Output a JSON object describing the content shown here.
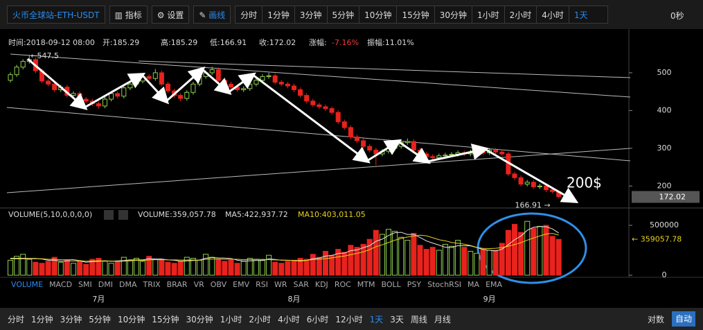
{
  "toolbar": {
    "symbol": "火币全球站-ETH-USDT",
    "indicator": "指标",
    "settings": "设置",
    "draw": "画线",
    "intervals": [
      "分时",
      "1分钟",
      "3分钟",
      "5分钟",
      "10分钟",
      "15分钟",
      "30分钟",
      "1小时",
      "2小时",
      "4小时",
      "1天"
    ],
    "countdown": "0秒"
  },
  "info": {
    "time": "时间:2018-09-12 08:00",
    "open": "开:185.29",
    "high": "高:185.29",
    "low": "低:166.91",
    "close": "收:172.02",
    "change_label": "涨幅:",
    "change": "-7.16%",
    "amplitude": "振幅:11.01%"
  },
  "chart_data": [
    {
      "type": "candlestick",
      "categories": [
        null,
        null,
        null,
        null,
        null,
        null,
        null,
        null,
        null,
        null,
        null,
        null,
        null,
        null,
        "7月",
        null,
        null,
        null,
        null,
        null,
        null,
        null,
        null,
        null,
        null,
        null,
        null,
        null,
        null,
        null,
        null,
        null,
        null,
        null,
        null,
        null,
        null,
        null,
        null,
        null,
        null,
        null,
        null,
        null,
        null,
        "8月",
        null,
        null,
        null,
        null,
        null,
        null,
        null,
        null,
        null,
        null,
        null,
        null,
        null,
        null,
        null,
        null,
        null,
        null,
        null,
        null,
        null,
        null,
        null,
        null,
        null,
        null,
        null,
        null,
        null,
        null,
        "9月",
        null,
        null,
        null,
        null,
        null,
        null,
        null,
        null,
        null,
        null,
        null
      ],
      "candles": [
        [
          480,
          501,
          474,
          495
        ],
        [
          495,
          521,
          489,
          515
        ],
        [
          515,
          536,
          509,
          530
        ],
        [
          530,
          547.5,
          524,
          535
        ],
        [
          535,
          541,
          499,
          505
        ],
        [
          505,
          511,
          472,
          478
        ],
        [
          478,
          484,
          464,
          470
        ],
        [
          470,
          476,
          449,
          455
        ],
        [
          455,
          468,
          449,
          462
        ],
        [
          462,
          468,
          434,
          440
        ],
        [
          440,
          451,
          434,
          445
        ],
        [
          445,
          451,
          424,
          430
        ],
        [
          430,
          436,
          419,
          425
        ],
        [
          425,
          431,
          412,
          418
        ],
        [
          418,
          424,
          405,
          412
        ],
        [
          412,
          436,
          406,
          430
        ],
        [
          430,
          451,
          424,
          445
        ],
        [
          445,
          451,
          432,
          438
        ],
        [
          438,
          466,
          432,
          460
        ],
        [
          460,
          476,
          454,
          470
        ],
        [
          470,
          484,
          464,
          478
        ],
        [
          478,
          496,
          472,
          490
        ],
        [
          490,
          496,
          479,
          485
        ],
        [
          485,
          510,
          479,
          500
        ],
        [
          500,
          506,
          464,
          470
        ],
        [
          470,
          476,
          446,
          452
        ],
        [
          452,
          458,
          434,
          440
        ],
        [
          440,
          446,
          424,
          432
        ],
        [
          432,
          454,
          426,
          448
        ],
        [
          448,
          476,
          442,
          470
        ],
        [
          470,
          496,
          464,
          490
        ],
        [
          490,
          506,
          484,
          500
        ],
        [
          500,
          516,
          494,
          508
        ],
        [
          508,
          514,
          474,
          480
        ],
        [
          480,
          486,
          464,
          470
        ],
        [
          470,
          476,
          456,
          462
        ],
        [
          462,
          468,
          449,
          455
        ],
        [
          455,
          464,
          449,
          458
        ],
        [
          458,
          476,
          452,
          470
        ],
        [
          470,
          486,
          464,
          480
        ],
        [
          480,
          496,
          474,
          490
        ],
        [
          490,
          500,
          484,
          492
        ],
        [
          492,
          498,
          469,
          475
        ],
        [
          475,
          481,
          464,
          470
        ],
        [
          470,
          476,
          459,
          465
        ],
        [
          465,
          471,
          449,
          455
        ],
        [
          455,
          461,
          434,
          440
        ],
        [
          440,
          446,
          419,
          425
        ],
        [
          425,
          431,
          409,
          415
        ],
        [
          415,
          421,
          404,
          410
        ],
        [
          410,
          416,
          399,
          405
        ],
        [
          405,
          411,
          389,
          395
        ],
        [
          395,
          401,
          364,
          370
        ],
        [
          370,
          376,
          349,
          355
        ],
        [
          355,
          361,
          324,
          330
        ],
        [
          330,
          336,
          314,
          320
        ],
        [
          320,
          326,
          299,
          305
        ],
        [
          305,
          311,
          289,
          295
        ],
        [
          295,
          301,
          255,
          285
        ],
        [
          285,
          298,
          279,
          292
        ],
        [
          292,
          306,
          286,
          300
        ],
        [
          300,
          311,
          294,
          305
        ],
        [
          305,
          321,
          299,
          315
        ],
        [
          315,
          326,
          309,
          318
        ],
        [
          318,
          324,
          289,
          295
        ],
        [
          295,
          301,
          279,
          285
        ],
        [
          285,
          291,
          272,
          278
        ],
        [
          278,
          284,
          269,
          275
        ],
        [
          275,
          286,
          269,
          280
        ],
        [
          280,
          288,
          274,
          282
        ],
        [
          282,
          290,
          276,
          284
        ],
        [
          284,
          294,
          278,
          288
        ],
        [
          288,
          294,
          279,
          285
        ],
        [
          285,
          296,
          279,
          290
        ],
        [
          290,
          298,
          284,
          292
        ],
        [
          292,
          298,
          282,
          288
        ],
        [
          288,
          301,
          282,
          295
        ],
        [
          295,
          301,
          284,
          290
        ],
        [
          290,
          296,
          279,
          285
        ],
        [
          285,
          291,
          226,
          232
        ],
        [
          232,
          238,
          216,
          222
        ],
        [
          222,
          228,
          199,
          205
        ],
        [
          205,
          216,
          199,
          210
        ],
        [
          210,
          216,
          192,
          198
        ],
        [
          198,
          206,
          192,
          200
        ],
        [
          200,
          206,
          184,
          190
        ],
        [
          190,
          196,
          180,
          185.29
        ],
        [
          185.29,
          185.29,
          166.91,
          172.02
        ]
      ],
      "up_color": "#8fd14f",
      "down_color": "#e8221d",
      "ylim": [
        151,
        555
      ],
      "yticks": [
        200,
        300,
        400,
        500
      ],
      "high_label": {
        "value": 547.5,
        "label": "←547.5"
      },
      "low_label": {
        "value": 166.91,
        "label": "166.91 →"
      },
      "price_tag": 172.02,
      "annotation": "200$"
    },
    {
      "type": "bar",
      "header": "VOLUME(5,10,0,0,0,0)",
      "volume_text": "VOLUME:359,057.78",
      "ma5_text": "MA5:422,937.72",
      "ma10_text": "MA10:403,011.05",
      "values": [
        150000,
        190000,
        210000,
        160000,
        130000,
        120000,
        140000,
        180000,
        130000,
        150000,
        120000,
        140000,
        110000,
        160000,
        170000,
        140000,
        120000,
        130000,
        180000,
        150000,
        170000,
        140000,
        190000,
        160000,
        150000,
        130000,
        120000,
        140000,
        180000,
        170000,
        150000,
        210000,
        180000,
        160000,
        140000,
        150000,
        120000,
        140000,
        170000,
        160000,
        150000,
        200000,
        130000,
        120000,
        140000,
        150000,
        170000,
        160000,
        210000,
        180000,
        240000,
        200000,
        260000,
        230000,
        300000,
        280000,
        310000,
        360000,
        450000,
        410000,
        460000,
        440000,
        380000,
        350000,
        420000,
        300000,
        260000,
        280000,
        250000,
        310000,
        290000,
        350000,
        280000,
        240000,
        220000,
        260000,
        250000,
        250000,
        320000,
        450000,
        510000,
        430000,
        540000,
        470000,
        490000,
        500000,
        390000,
        359057.78
      ],
      "ma5": [
        170000,
        170000,
        170000,
        168000,
        168000,
        162000,
        150000,
        150000,
        140000,
        144000,
        144000,
        144000,
        130000,
        136000,
        140000,
        144000,
        140000,
        144000,
        148000,
        154000,
        154000,
        154000,
        166000,
        162000,
        162000,
        154000,
        150000,
        140000,
        144000,
        148000,
        152000,
        170000,
        178000,
        174000,
        172000,
        168000,
        150000,
        142000,
        144000,
        148000,
        148000,
        164000,
        158000,
        150000,
        150000,
        148000,
        142000,
        148000,
        166000,
        172000,
        192000,
        198000,
        218000,
        222000,
        246000,
        254000,
        276000,
        296000,
        340000,
        362000,
        398000,
        426000,
        430000,
        408000,
        410000,
        378000,
        344000,
        322000,
        302000,
        280000,
        278000,
        296000,
        296000,
        294000,
        278000,
        258000,
        250000,
        244000,
        260000,
        306000,
        356000,
        392000,
        450000,
        480000,
        488000,
        486000,
        464000,
        422937.72
      ],
      "ma10": [
        165000,
        165000,
        165000,
        165000,
        165000,
        165000,
        160000,
        160000,
        155000,
        155000,
        157000,
        147000,
        140000,
        143000,
        145000,
        144000,
        142000,
        137000,
        141000,
        144000,
        149000,
        147000,
        154000,
        155000,
        156000,
        154000,
        154000,
        152000,
        152000,
        153000,
        151000,
        160000,
        162000,
        162000,
        160000,
        161000,
        160000,
        156000,
        157000,
        158000,
        159000,
        155000,
        154000,
        152000,
        150000,
        149000,
        148000,
        149000,
        157000,
        160000,
        167000,
        174000,
        184000,
        193000,
        206000,
        219000,
        234000,
        257000,
        286000,
        305000,
        328000,
        351000,
        369000,
        383000,
        393000,
        401000,
        395000,
        376000,
        356000,
        345000,
        328000,
        320000,
        311000,
        298000,
        279000,
        269000,
        267000,
        270000,
        277000,
        291000,
        307000,
        326000,
        351000,
        373000,
        393000,
        413000,
        418000,
        403011.05
      ],
      "ma5_color": "#e6e6e6",
      "ma10_color": "#e8d21e",
      "ylim": [
        -20800,
        548600
      ],
      "yticks": [
        0,
        500000
      ],
      "last_label": {
        "value": 359057.78,
        "label": "← 359057.78"
      }
    }
  ],
  "indicator_tabs": [
    "VOLUME",
    "MACD",
    "SMI",
    "DMI",
    "DMA",
    "TRIX",
    "BRAR",
    "VR",
    "OBV",
    "EMV",
    "RSI",
    "WR",
    "SAR",
    "KDJ",
    "ROC",
    "MTM",
    "BOLL",
    "PSY",
    "StochRSI",
    "MA",
    "EMA"
  ],
  "bottom_bar": {
    "intervals": [
      "分时",
      "1分钟",
      "3分钟",
      "5分钟",
      "10分钟",
      "15分钟",
      "30分钟",
      "1小时",
      "2小时",
      "4小时",
      "6小时",
      "12小时",
      "1天",
      "3天",
      "周线",
      "月线"
    ],
    "log": "对数",
    "auto": "自动"
  }
}
